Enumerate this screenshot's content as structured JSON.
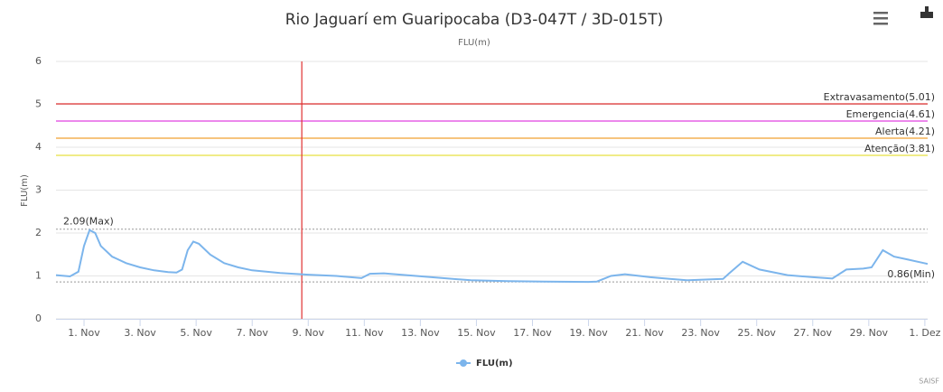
{
  "chart_data": {
    "type": "line",
    "title": "Rio Jaguarí em Guaripocaba (D3-047T / 3D-015T)",
    "subtitle": "FLU(m)",
    "y_label": "FLU(m)",
    "credits": "SAISF",
    "xlim": [
      0,
      31.1
    ],
    "xticks": [
      {
        "value": 1,
        "label": "1. Nov"
      },
      {
        "value": 3,
        "label": "3. Nov"
      },
      {
        "value": 5,
        "label": "5. Nov"
      },
      {
        "value": 7,
        "label": "7. Nov"
      },
      {
        "value": 9,
        "label": "9. Nov"
      },
      {
        "value": 11,
        "label": "11. Nov"
      },
      {
        "value": 13,
        "label": "13. Nov"
      },
      {
        "value": 15,
        "label": "15. Nov"
      },
      {
        "value": 17,
        "label": "17. Nov"
      },
      {
        "value": 19,
        "label": "19. Nov"
      },
      {
        "value": 21,
        "label": "21. Nov"
      },
      {
        "value": 23,
        "label": "23. Nov"
      },
      {
        "value": 25,
        "label": "25. Nov"
      },
      {
        "value": 27,
        "label": "27. Nov"
      },
      {
        "value": 29,
        "label": "29. Nov"
      },
      {
        "value": 31,
        "label": "1. Dez"
      }
    ],
    "ylim": [
      0,
      6
    ],
    "yticks": [
      0,
      1,
      2,
      3,
      4,
      5,
      6
    ],
    "grid": true,
    "legend": "bottom",
    "series": [
      {
        "name": "FLU(m)",
        "color": "#7cb5ec",
        "x": [
          0,
          0.5,
          0.8,
          1.0,
          1.2,
          1.4,
          1.6,
          2.0,
          2.5,
          3,
          3.5,
          4,
          4.3,
          4.5,
          4.7,
          4.9,
          5.1,
          5.5,
          6,
          6.5,
          7,
          8,
          9,
          10,
          10.9,
          11.2,
          11.7,
          13.2,
          14.8,
          16.1,
          17.4,
          19.0,
          19.3,
          19.8,
          20.3,
          21.2,
          21.9,
          22.5,
          23.8,
          24.0,
          24.5,
          25.1,
          26.1,
          27.0,
          27.7,
          28.2,
          28.8,
          29.1,
          29.5,
          29.9,
          30.4,
          31.1
        ],
        "values": [
          1.02,
          0.99,
          1.1,
          1.7,
          2.07,
          2.0,
          1.7,
          1.45,
          1.3,
          1.2,
          1.13,
          1.09,
          1.08,
          1.15,
          1.6,
          1.8,
          1.75,
          1.5,
          1.3,
          1.2,
          1.13,
          1.07,
          1.03,
          1.0,
          0.95,
          1.05,
          1.06,
          0.98,
          0.9,
          0.88,
          0.87,
          0.86,
          0.87,
          1.0,
          1.04,
          0.97,
          0.93,
          0.9,
          0.93,
          1.05,
          1.33,
          1.15,
          1.02,
          0.97,
          0.94,
          1.15,
          1.17,
          1.2,
          1.6,
          1.45,
          1.38,
          1.28
        ]
      }
    ],
    "thresholds": [
      {
        "label": "Extravasamento(5.01)",
        "value": 5.01,
        "color": "#e03030"
      },
      {
        "label": "Emergencia(4.61)",
        "value": 4.61,
        "color": "#e040e0"
      },
      {
        "label": "Alerta(4.21)",
        "value": 4.21,
        "color": "#f0a030"
      },
      {
        "label": "Atenção(3.81)",
        "value": 3.81,
        "color": "#e8e040"
      }
    ],
    "extremes": [
      {
        "label": "2.09(Max)",
        "value": 2.09,
        "side": "left"
      },
      {
        "label": "0.86(Min)",
        "value": 0.86,
        "side": "right"
      }
    ],
    "vertical_line": {
      "value": 8.77,
      "color": "#e03030"
    }
  }
}
